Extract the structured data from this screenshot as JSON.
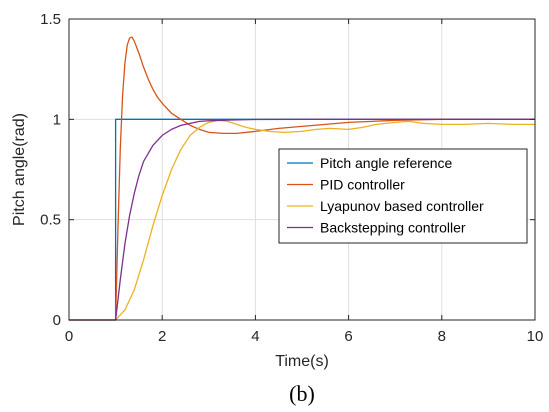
{
  "chart_data": {
    "type": "line",
    "title": "",
    "caption": "(b)",
    "xlabel": "Time(s)",
    "ylabel": "Pitch angle(rad)",
    "xlim": [
      0,
      10
    ],
    "ylim": [
      0,
      1.5
    ],
    "xticks": [
      0,
      2,
      4,
      6,
      8,
      10
    ],
    "yticks": [
      0,
      0.5,
      1,
      1.5
    ],
    "xtick_labels": [
      "0",
      "2",
      "4",
      "6",
      "8",
      "10"
    ],
    "ytick_labels": [
      "0",
      "0.5",
      "1",
      "1.5"
    ],
    "grid": true,
    "legend_position": "center-right",
    "series": [
      {
        "name": "Pitch angle reference",
        "color": "#0072BD",
        "x": [
          0,
          1.0,
          1.0,
          10
        ],
        "y": [
          0,
          0,
          1,
          1
        ]
      },
      {
        "name": "PID controller",
        "color": "#D95319",
        "x": [
          0,
          1.0,
          1.05,
          1.1,
          1.15,
          1.2,
          1.25,
          1.3,
          1.35,
          1.4,
          1.5,
          1.6,
          1.7,
          1.8,
          1.9,
          2.0,
          2.2,
          2.4,
          2.6,
          2.8,
          3.0,
          3.3,
          3.6,
          4.0,
          4.5,
          5.0,
          5.5,
          6.0,
          6.5,
          7.0,
          8.0,
          10.0
        ],
        "y": [
          0,
          0,
          0.45,
          0.85,
          1.12,
          1.28,
          1.37,
          1.405,
          1.41,
          1.39,
          1.33,
          1.26,
          1.2,
          1.15,
          1.11,
          1.08,
          1.03,
          1.0,
          0.97,
          0.95,
          0.935,
          0.93,
          0.93,
          0.94,
          0.955,
          0.965,
          0.975,
          0.985,
          0.99,
          0.995,
          1.0,
          1.0
        ]
      },
      {
        "name": "Lyapunov based controller",
        "color": "#EDB120",
        "x": [
          0,
          1.0,
          1.2,
          1.4,
          1.6,
          1.8,
          2.0,
          2.2,
          2.4,
          2.6,
          2.8,
          3.0,
          3.2,
          3.4,
          3.6,
          3.8,
          4.0,
          4.3,
          4.6,
          5.0,
          5.3,
          5.6,
          6.0,
          6.3,
          6.6,
          7.0,
          7.3,
          7.6,
          8.0,
          8.5,
          9.0,
          9.5,
          10.0
        ],
        "y": [
          0,
          0,
          0.05,
          0.15,
          0.3,
          0.47,
          0.62,
          0.75,
          0.85,
          0.92,
          0.96,
          0.985,
          0.995,
          0.99,
          0.975,
          0.96,
          0.95,
          0.94,
          0.935,
          0.94,
          0.95,
          0.955,
          0.95,
          0.96,
          0.975,
          0.985,
          0.99,
          0.98,
          0.975,
          0.975,
          0.98,
          0.975,
          0.975
        ]
      },
      {
        "name": "Backstepping controller",
        "color": "#7E2F8E",
        "x": [
          0,
          1.0,
          1.1,
          1.2,
          1.3,
          1.4,
          1.5,
          1.6,
          1.8,
          2.0,
          2.2,
          2.4,
          2.6,
          2.8,
          3.0,
          3.5,
          4.0,
          5.0,
          6.0,
          10.0
        ],
        "y": [
          0,
          0,
          0.2,
          0.38,
          0.52,
          0.63,
          0.72,
          0.79,
          0.87,
          0.92,
          0.95,
          0.97,
          0.98,
          0.99,
          0.993,
          0.997,
          0.999,
          1.0,
          1.0,
          1.0
        ]
      }
    ]
  }
}
